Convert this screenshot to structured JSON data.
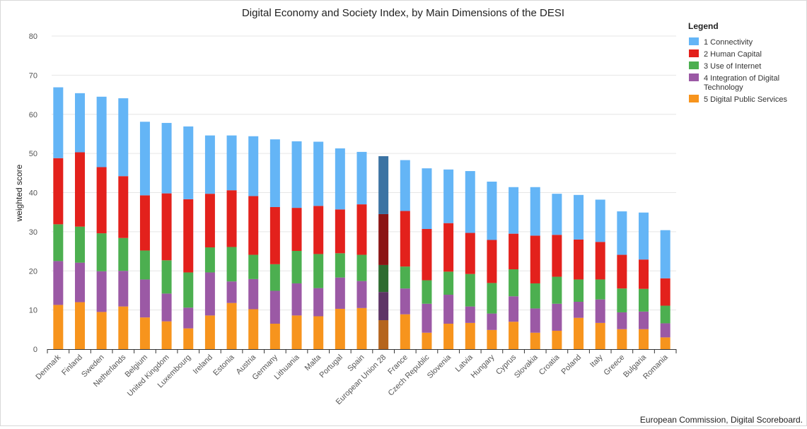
{
  "chart_data": {
    "type": "bar",
    "stacked": true,
    "title": "Digital Economy and Society Index, by Main Dimensions of the DESI",
    "ylabel": "weighted score",
    "xlabel": "",
    "ylim": [
      0,
      80
    ],
    "yticks": [
      0,
      10,
      20,
      30,
      40,
      50,
      60,
      70,
      80
    ],
    "grid": true,
    "legend_title": "Legend",
    "legend_position": "right",
    "credit": "European Commission, Digital Scoreboard.",
    "highlight_category": "European Union 28",
    "categories": [
      "Denmark",
      "Finland",
      "Sweden",
      "Netherlands",
      "Belgium",
      "United Kingdom",
      "Luxembourg",
      "Ireland",
      "Estonia",
      "Austria",
      "Germany",
      "Lithuania",
      "Malta",
      "Portugal",
      "Spain",
      "European Union 28",
      "France",
      "Czech Republic",
      "Slovenia",
      "Latvia",
      "Hungary",
      "Cyprus",
      "Slovakia",
      "Croatia",
      "Poland",
      "Italy",
      "Greece",
      "Bulgaria",
      "Romania"
    ],
    "series": [
      {
        "name": "5 Digital Public Services",
        "color": "#f7941d",
        "highlight_color": "#b5651d",
        "values": [
          11.3,
          12.0,
          9.5,
          10.9,
          8.1,
          7.1,
          5.3,
          8.6,
          11.8,
          10.2,
          6.5,
          8.6,
          8.4,
          10.3,
          10.5,
          7.4,
          8.9,
          4.2,
          6.5,
          6.7,
          4.9,
          7.0,
          4.2,
          4.7,
          8.0,
          6.7,
          5.1,
          5.1,
          3.0
        ]
      },
      {
        "name": "4 Integration of Digital Technology",
        "color": "#9b59a5",
        "highlight_color": "#5e3566",
        "values": [
          11.2,
          10.1,
          10.4,
          9.1,
          9.7,
          7.1,
          5.3,
          11.0,
          5.5,
          7.7,
          8.4,
          8.2,
          7.2,
          8.0,
          6.9,
          7.2,
          6.6,
          7.4,
          7.4,
          4.2,
          4.2,
          6.5,
          6.2,
          6.9,
          4.1,
          6.0,
          4.3,
          4.5,
          3.6
        ]
      },
      {
        "name": "3 Use of Internet",
        "color": "#4caf50",
        "highlight_color": "#2e6b30",
        "values": [
          9.4,
          9.2,
          9.7,
          8.4,
          7.4,
          8.5,
          9.0,
          6.4,
          8.8,
          6.2,
          6.8,
          8.3,
          8.7,
          6.2,
          6.7,
          6.9,
          5.6,
          6.0,
          5.9,
          8.3,
          7.8,
          6.9,
          6.4,
          6.9,
          5.7,
          5.1,
          6.1,
          5.8,
          4.5
        ]
      },
      {
        "name": "2 Human Capital",
        "color": "#e3211c",
        "highlight_color": "#8b1414",
        "values": [
          16.9,
          19.0,
          16.9,
          15.8,
          14.1,
          17.1,
          18.7,
          13.7,
          14.5,
          15.0,
          14.6,
          11.0,
          12.3,
          11.2,
          12.9,
          13.0,
          14.2,
          13.1,
          12.4,
          10.5,
          11.0,
          9.1,
          12.2,
          10.7,
          10.2,
          9.6,
          8.6,
          7.5,
          7.0
        ]
      },
      {
        "name": "1 Connectivity",
        "color": "#64b5f6",
        "highlight_color": "#3b73a3",
        "values": [
          18.1,
          15.1,
          18.0,
          19.9,
          18.8,
          18.0,
          18.6,
          14.9,
          14.0,
          15.3,
          17.3,
          17.0,
          16.4,
          15.6,
          13.4,
          14.8,
          13.0,
          15.5,
          13.7,
          15.8,
          14.9,
          11.9,
          12.4,
          10.5,
          11.4,
          10.8,
          11.1,
          12.0,
          12.3
        ]
      }
    ]
  }
}
